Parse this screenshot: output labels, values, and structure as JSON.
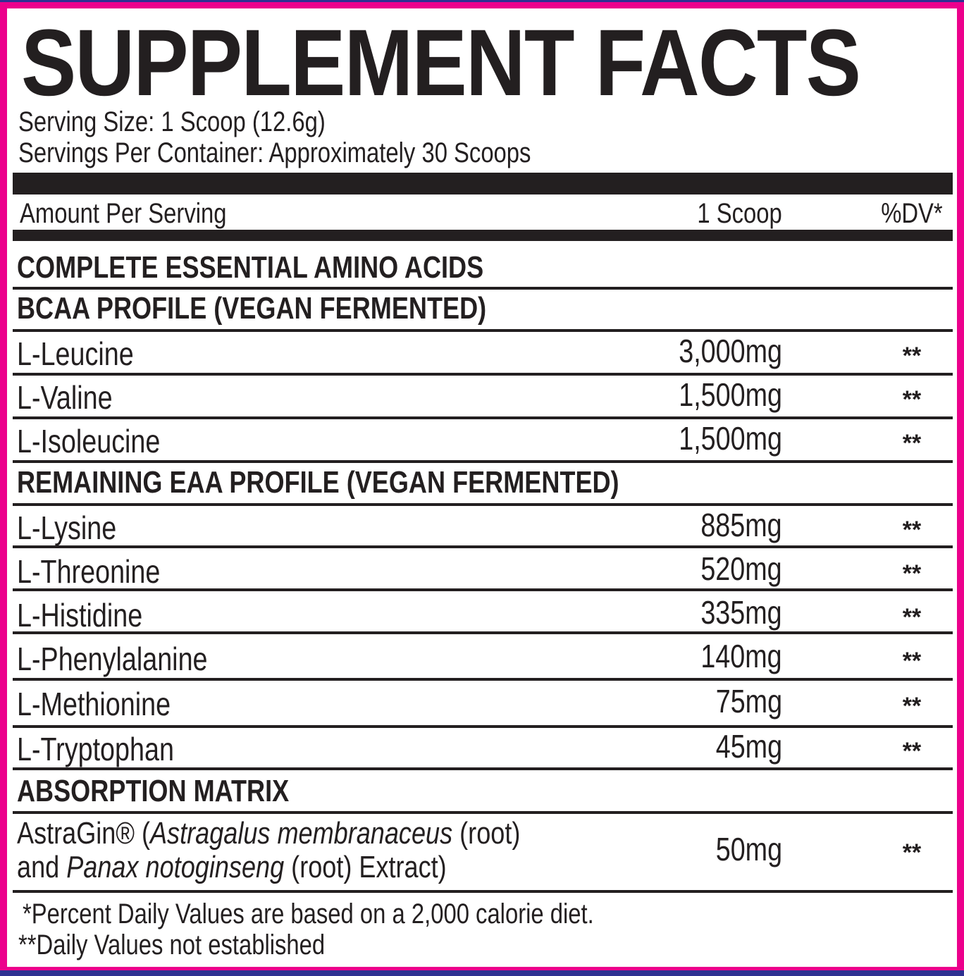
{
  "title": "SUPPLEMENT FACTS",
  "serving_size": "Serving Size: 1 Scoop (12.6g)",
  "servings_per_container": "Servings Per Container: Approximately 30 Scoops",
  "columns": {
    "label": "Amount Per Serving",
    "amount": "1 Scoop",
    "dv": "%DV*"
  },
  "rows": [
    {
      "type": "header",
      "name": "COMPLETE ESSENTIAL AMINO ACIDS"
    },
    {
      "type": "header",
      "name": "BCAA PROFILE  (VEGAN  FERMENTED)"
    },
    {
      "type": "item",
      "name": "L-Leucine",
      "amount": "3,000mg",
      "dv": "**"
    },
    {
      "type": "item",
      "name": "L-Valine",
      "amount": "1,500mg",
      "dv": "**"
    },
    {
      "type": "item",
      "name": "L-Isoleucine",
      "amount": "1,500mg",
      "dv": "**"
    },
    {
      "type": "header",
      "name": "REMAINING EAA PROFILE  (VEGAN  FERMENTED)"
    },
    {
      "type": "item",
      "name": "L-Lysine",
      "amount": "885mg",
      "dv": "**"
    },
    {
      "type": "item",
      "name": "L-Threonine",
      "amount": "520mg",
      "dv": "**"
    },
    {
      "type": "item",
      "name": "L-Histidine",
      "amount": "335mg",
      "dv": "**"
    },
    {
      "type": "item",
      "name": "L-Phenylalanine",
      "amount": "140mg",
      "dv": "**"
    },
    {
      "type": "item",
      "name": "L-Methionine",
      "amount": "75mg",
      "dv": "**"
    },
    {
      "type": "item",
      "name": "L-Tryptophan",
      "amount": "45mg",
      "dv": "**"
    },
    {
      "type": "header",
      "name": "ABSORPTION MATRIX"
    }
  ],
  "astragin": {
    "line1_a": "AstraGin® (",
    "line1_b": "Astragalus membranaceus",
    "line1_c": " (root)",
    "line2_a": "and ",
    "line2_b": "Panax notoginseng",
    "line2_c": " (root) Extract)",
    "amount": "50mg",
    "dv": "**"
  },
  "footnotes": [
    "*Percent Daily Values are based on a 2,000 calorie diet.",
    "**Daily Values not established"
  ],
  "colors": {
    "border": "#ec008c",
    "outer": "#2e3192",
    "text": "#231f20"
  }
}
